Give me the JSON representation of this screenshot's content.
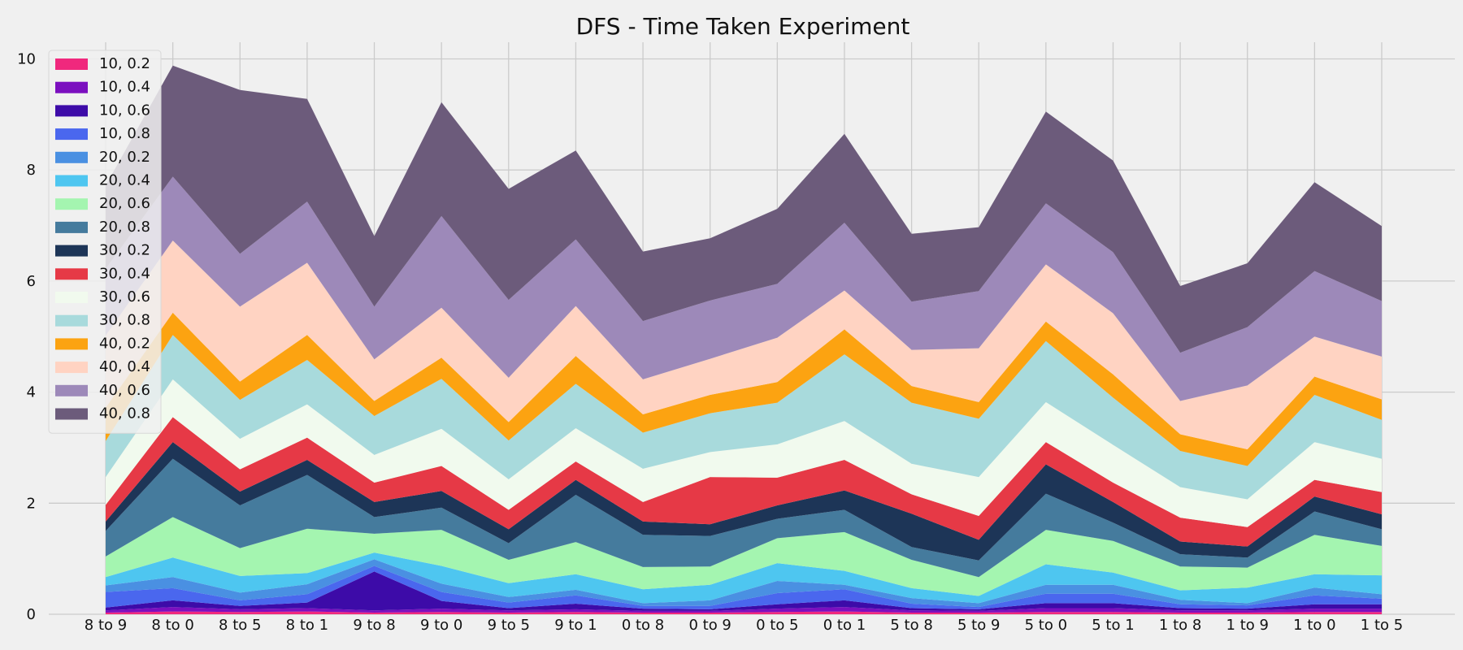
{
  "chart_data": {
    "type": "area",
    "stacked": true,
    "title": "DFS - Time Taken Experiment",
    "xlabel": "",
    "ylabel": "",
    "ylim": [
      0,
      10.3
    ],
    "yticks": [
      0,
      2,
      4,
      6,
      8,
      10
    ],
    "grid": true,
    "legend_position": "top-left",
    "categories": [
      "8 to 9",
      "8 to 0",
      "8 to 5",
      "8 to 1",
      "9 to 8",
      "9 to 0",
      "9 to 5",
      "9 to 1",
      "0 to 8",
      "0 to 9",
      "0 to 5",
      "0 to 1",
      "5 to 8",
      "5 to 9",
      "5 to 0",
      "5 to 1",
      "1 to 8",
      "1 to 9",
      "1 to 0",
      "1 to 5"
    ],
    "series": [
      {
        "name": "10, 0.2",
        "color": "#f0287d",
        "values": [
          0.03,
          0.05,
          0.04,
          0.05,
          0.03,
          0.04,
          0.03,
          0.04,
          0.03,
          0.03,
          0.04,
          0.05,
          0.03,
          0.03,
          0.04,
          0.04,
          0.03,
          0.03,
          0.04,
          0.04
        ]
      },
      {
        "name": "10, 0.4",
        "color": "#7b0fbf",
        "values": [
          0.04,
          0.08,
          0.05,
          0.06,
          0.04,
          0.06,
          0.04,
          0.05,
          0.03,
          0.03,
          0.06,
          0.08,
          0.04,
          0.03,
          0.07,
          0.07,
          0.04,
          0.04,
          0.06,
          0.06
        ]
      },
      {
        "name": "10, 0.6",
        "color": "#3d0ba8",
        "values": [
          0.05,
          0.12,
          0.06,
          0.1,
          0.7,
          0.14,
          0.04,
          0.1,
          0.04,
          0.03,
          0.08,
          0.12,
          0.04,
          0.03,
          0.09,
          0.09,
          0.04,
          0.03,
          0.08,
          0.08
        ]
      },
      {
        "name": "10, 0.8",
        "color": "#4a67ee",
        "values": [
          0.28,
          0.22,
          0.1,
          0.15,
          0.1,
          0.16,
          0.1,
          0.15,
          0.05,
          0.06,
          0.2,
          0.2,
          0.08,
          0.04,
          0.17,
          0.17,
          0.07,
          0.06,
          0.16,
          0.1
        ]
      },
      {
        "name": "20, 0.2",
        "color": "#4a90e2",
        "values": [
          0.12,
          0.2,
          0.14,
          0.18,
          0.12,
          0.15,
          0.1,
          0.1,
          0.05,
          0.1,
          0.22,
          0.08,
          0.1,
          0.07,
          0.16,
          0.16,
          0.08,
          0.04,
          0.14,
          0.08
        ]
      },
      {
        "name": "20, 0.4",
        "color": "#4ec6f0",
        "values": [
          0.15,
          0.35,
          0.3,
          0.2,
          0.12,
          0.32,
          0.25,
          0.28,
          0.25,
          0.28,
          0.32,
          0.25,
          0.18,
          0.13,
          0.37,
          0.22,
          0.17,
          0.28,
          0.24,
          0.34
        ]
      },
      {
        "name": "20, 0.6",
        "color": "#a4f5b0",
        "values": [
          0.37,
          0.73,
          0.5,
          0.8,
          0.34,
          0.65,
          0.42,
          0.58,
          0.4,
          0.33,
          0.45,
          0.7,
          0.51,
          0.34,
          0.62,
          0.57,
          0.43,
          0.36,
          0.71,
          0.53
        ]
      },
      {
        "name": "20, 0.8",
        "color": "#457b9d",
        "values": [
          0.46,
          1.05,
          0.77,
          0.97,
          0.3,
          0.4,
          0.3,
          0.85,
          0.58,
          0.55,
          0.35,
          0.4,
          0.23,
          0.3,
          0.65,
          0.33,
          0.22,
          0.18,
          0.42,
          0.3
        ]
      },
      {
        "name": "30, 0.2",
        "color": "#1d3557",
        "values": [
          0.17,
          0.3,
          0.25,
          0.27,
          0.27,
          0.3,
          0.25,
          0.27,
          0.24,
          0.21,
          0.24,
          0.35,
          0.6,
          0.37,
          0.53,
          0.37,
          0.23,
          0.2,
          0.27,
          0.27
        ]
      },
      {
        "name": "30, 0.4",
        "color": "#e63946",
        "values": [
          0.3,
          0.45,
          0.4,
          0.4,
          0.35,
          0.45,
          0.35,
          0.33,
          0.35,
          0.85,
          0.5,
          0.55,
          0.35,
          0.43,
          0.4,
          0.35,
          0.43,
          0.35,
          0.3,
          0.4
        ]
      },
      {
        "name": "30, 0.6",
        "color": "#f1faee",
        "values": [
          0.5,
          0.68,
          0.55,
          0.6,
          0.5,
          0.67,
          0.55,
          0.6,
          0.6,
          0.45,
          0.6,
          0.7,
          0.55,
          0.7,
          0.72,
          0.68,
          0.55,
          0.5,
          0.68,
          0.6
        ]
      },
      {
        "name": "30, 0.8",
        "color": "#a8dadc",
        "values": [
          0.65,
          0.8,
          0.7,
          0.8,
          0.7,
          0.9,
          0.7,
          0.8,
          0.65,
          0.7,
          0.75,
          1.2,
          1.1,
          1.05,
          1.1,
          0.85,
          0.65,
          0.6,
          0.85,
          0.7
        ]
      },
      {
        "name": "40, 0.2",
        "color": "#fca311",
        "values": [
          0.6,
          0.4,
          0.33,
          0.45,
          0.27,
          0.38,
          0.33,
          0.5,
          0.33,
          0.33,
          0.37,
          0.45,
          0.3,
          0.3,
          0.35,
          0.42,
          0.3,
          0.3,
          0.33,
          0.37
        ]
      },
      {
        "name": "40, 0.4",
        "color": "#ffd3c2",
        "values": [
          1.3,
          1.3,
          1.35,
          1.3,
          0.75,
          0.9,
          0.8,
          0.9,
          0.63,
          0.65,
          0.8,
          0.7,
          0.65,
          0.97,
          1.03,
          1.1,
          0.6,
          1.15,
          0.72,
          0.77
        ]
      },
      {
        "name": "40, 0.6",
        "color": "#9d89b9",
        "values": [
          1.2,
          1.15,
          0.95,
          1.1,
          0.95,
          1.65,
          1.4,
          1.2,
          1.05,
          1.05,
          0.97,
          1.22,
          0.87,
          1.03,
          1.1,
          1.1,
          0.87,
          1.05,
          1.18,
          1.0
        ]
      },
      {
        "name": "40, 0.8",
        "color": "#6c5b7b",
        "values": [
          1.5,
          2.0,
          2.95,
          1.85,
          1.27,
          2.05,
          2.0,
          1.6,
          1.25,
          1.12,
          1.35,
          1.6,
          1.22,
          1.15,
          1.65,
          1.65,
          1.2,
          1.15,
          1.6,
          1.35
        ]
      }
    ]
  }
}
